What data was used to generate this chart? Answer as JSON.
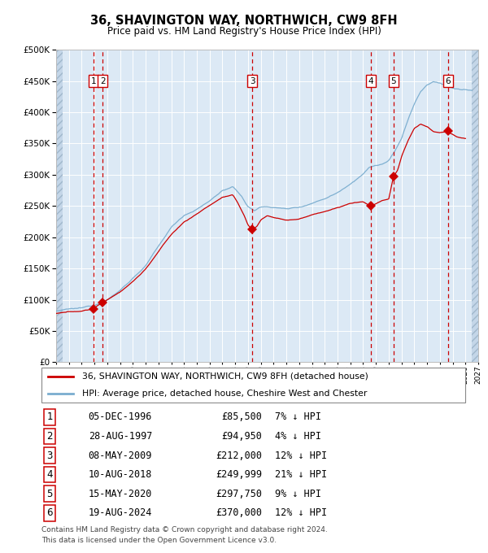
{
  "title": "36, SHAVINGTON WAY, NORTHWICH, CW9 8FH",
  "subtitle": "Price paid vs. HM Land Registry's House Price Index (HPI)",
  "legend_line1": "36, SHAVINGTON WAY, NORTHWICH, CW9 8FH (detached house)",
  "legend_line2": "HPI: Average price, detached house, Cheshire West and Chester",
  "footer1": "Contains HM Land Registry data © Crown copyright and database right 2024.",
  "footer2": "This data is licensed under the Open Government Licence v3.0.",
  "xmin": 1994,
  "xmax": 2027,
  "ymin": 0,
  "ymax": 500000,
  "yticks": [
    0,
    50000,
    100000,
    150000,
    200000,
    250000,
    300000,
    350000,
    400000,
    450000,
    500000
  ],
  "background_color": "#dce9f5",
  "grid_color": "#ffffff",
  "sale_color": "#cc0000",
  "hpi_color": "#7aadcf",
  "dashed_line_color": "#cc0000",
  "marker_color": "#cc0000",
  "sale_dates_x": [
    1996.92,
    1997.65,
    2009.35,
    2018.61,
    2020.37,
    2024.63
  ],
  "sale_prices_y": [
    85500,
    94950,
    212000,
    249999,
    297750,
    370000
  ],
  "sale_labels": [
    "1",
    "2",
    "3",
    "4",
    "5",
    "6"
  ],
  "sale_label_dates": [
    "05-DEC-1996",
    "28-AUG-1997",
    "08-MAY-2009",
    "10-AUG-2018",
    "15-MAY-2020",
    "19-AUG-2024"
  ],
  "sale_label_prices": [
    "£85,500",
    "£94,950",
    "£212,000",
    "£249,999",
    "£297,750",
    "£370,000"
  ],
  "sale_label_pcts": [
    "7% ↓ HPI",
    "4% ↓ HPI",
    "12% ↓ HPI",
    "21% ↓ HPI",
    "9% ↓ HPI",
    "12% ↓ HPI"
  ],
  "hpi_keypoints": [
    [
      1994.0,
      82000
    ],
    [
      1995.0,
      84000
    ],
    [
      1996.0,
      85000
    ],
    [
      1997.0,
      90000
    ],
    [
      1998.0,
      100000
    ],
    [
      1999.0,
      115000
    ],
    [
      2000.0,
      135000
    ],
    [
      2001.0,
      155000
    ],
    [
      2002.0,
      185000
    ],
    [
      2003.0,
      215000
    ],
    [
      2004.0,
      235000
    ],
    [
      2005.0,
      245000
    ],
    [
      2006.0,
      258000
    ],
    [
      2007.0,
      275000
    ],
    [
      2007.8,
      280000
    ],
    [
      2008.5,
      265000
    ],
    [
      2009.0,
      248000
    ],
    [
      2009.5,
      242000
    ],
    [
      2010.0,
      248000
    ],
    [
      2011.0,
      248000
    ],
    [
      2012.0,
      245000
    ],
    [
      2013.0,
      248000
    ],
    [
      2014.0,
      255000
    ],
    [
      2015.0,
      263000
    ],
    [
      2016.0,
      273000
    ],
    [
      2017.0,
      288000
    ],
    [
      2018.0,
      305000
    ],
    [
      2018.5,
      315000
    ],
    [
      2019.0,
      318000
    ],
    [
      2019.5,
      320000
    ],
    [
      2020.0,
      325000
    ],
    [
      2020.5,
      340000
    ],
    [
      2021.0,
      360000
    ],
    [
      2021.5,
      390000
    ],
    [
      2022.0,
      415000
    ],
    [
      2022.5,
      435000
    ],
    [
      2023.0,
      445000
    ],
    [
      2023.5,
      450000
    ],
    [
      2024.0,
      448000
    ],
    [
      2024.5,
      445000
    ],
    [
      2025.0,
      440000
    ],
    [
      2025.5,
      438000
    ],
    [
      2026.5,
      435000
    ]
  ],
  "sale_keypoints": [
    [
      1994.0,
      78000
    ],
    [
      1995.0,
      80000
    ],
    [
      1996.0,
      82000
    ],
    [
      1996.92,
      85500
    ],
    [
      1997.0,
      88000
    ],
    [
      1997.65,
      94950
    ],
    [
      1998.0,
      100000
    ],
    [
      1999.0,
      113000
    ],
    [
      2000.0,
      130000
    ],
    [
      2001.0,
      150000
    ],
    [
      2002.0,
      178000
    ],
    [
      2003.0,
      205000
    ],
    [
      2004.0,
      225000
    ],
    [
      2005.0,
      238000
    ],
    [
      2006.0,
      252000
    ],
    [
      2007.0,
      265000
    ],
    [
      2007.8,
      268000
    ],
    [
      2008.2,
      255000
    ],
    [
      2008.7,
      235000
    ],
    [
      2009.0,
      220000
    ],
    [
      2009.35,
      212000
    ],
    [
      2009.7,
      218000
    ],
    [
      2010.0,
      228000
    ],
    [
      2010.5,
      235000
    ],
    [
      2011.0,
      232000
    ],
    [
      2012.0,
      228000
    ],
    [
      2013.0,
      230000
    ],
    [
      2014.0,
      236000
    ],
    [
      2015.0,
      242000
    ],
    [
      2016.0,
      248000
    ],
    [
      2017.0,
      255000
    ],
    [
      2018.0,
      258000
    ],
    [
      2018.61,
      249999
    ],
    [
      2019.0,
      255000
    ],
    [
      2019.5,
      260000
    ],
    [
      2020.0,
      262000
    ],
    [
      2020.37,
      297750
    ],
    [
      2020.7,
      308000
    ],
    [
      2021.0,
      330000
    ],
    [
      2021.5,
      355000
    ],
    [
      2022.0,
      375000
    ],
    [
      2022.5,
      382000
    ],
    [
      2023.0,
      378000
    ],
    [
      2023.5,
      370000
    ],
    [
      2024.0,
      368000
    ],
    [
      2024.63,
      370000
    ],
    [
      2025.0,
      365000
    ],
    [
      2025.5,
      360000
    ],
    [
      2026.0,
      358000
    ]
  ]
}
